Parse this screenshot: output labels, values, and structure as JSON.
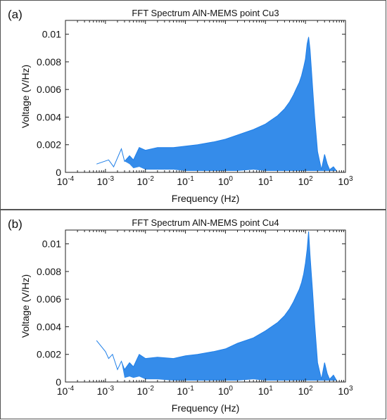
{
  "panels": [
    {
      "label": "(a)",
      "chart_data": {
        "type": "line",
        "title": "FFT Spectrum AlN-MEMS point Cu3",
        "xlabel": "Frequency (Hz)",
        "ylabel": "Voltage (V/Hz)",
        "xscale": "log",
        "xlim": [
          0.0001,
          1000
        ],
        "ylim": [
          0,
          0.011
        ],
        "x_ticks": [
          "10-4",
          "10-3",
          "10-2",
          "10-1",
          "100",
          "101",
          "102",
          "103"
        ],
        "y_ticks": [
          "0",
          "0.002",
          "0.004",
          "0.006",
          "0.008",
          "0.01"
        ],
        "y_tick_values": [
          0,
          0.002,
          0.004,
          0.006,
          0.008,
          0.01
        ],
        "grid": false,
        "color": "#1f7fe8",
        "series": [
          {
            "x": [
              0.0006,
              0.0012,
              0.0016,
              0.0025,
              0.003,
              0.004,
              0.005,
              0.007,
              0.01,
              0.02,
              0.05,
              0.1,
              0.2,
              0.5,
              1,
              2,
              5,
              10,
              20,
              30,
              40,
              50,
              60,
              70,
              80,
              90,
              100,
              110,
              120,
              130,
              140,
              150,
              170,
              200,
              250,
              300,
              350,
              400,
              500,
              600
            ],
            "y_upper": [
              0.0006,
              0.0009,
              0.0004,
              0.0017,
              0.0008,
              0.0012,
              0.0009,
              0.0018,
              0.0016,
              0.0018,
              0.0018,
              0.0019,
              0.002,
              0.0022,
              0.0024,
              0.0027,
              0.0031,
              0.0035,
              0.0041,
              0.0046,
              0.0051,
              0.0056,
              0.0061,
              0.0065,
              0.007,
              0.0076,
              0.0082,
              0.0093,
              0.0098,
              0.0089,
              0.0075,
              0.0062,
              0.004,
              0.0015,
              0.0002,
              0.0013,
              0.0006,
              0.0002,
              0.0004,
              0.0001
            ],
            "y_lower": [
              0.0006,
              0.0009,
              0.0004,
              0.0017,
              0.0008,
              0.0006,
              0.0003,
              0.0004,
              0.0002,
              0.0002,
              0.0002,
              0.0001,
              0.0001,
              0.0001,
              0.0001,
              0.0001,
              0.0002,
              0.0001,
              0.0001,
              0.0001,
              0.0001,
              0.0001,
              0.0001,
              0.0001,
              0.0001,
              0.0001,
              0.0001,
              0.0001,
              0.0001,
              0.0001,
              0.0001,
              0.0001,
              0.0001,
              0.0001,
              0.0001,
              0.0001,
              0.0001,
              0.0001,
              0.0001,
              0.0001
            ]
          }
        ]
      }
    },
    {
      "label": "(b)",
      "chart_data": {
        "type": "line",
        "title": "FFT Spectrum AlN-MEMS point Cu4",
        "xlabel": "Frequency (Hz)",
        "ylabel": "Voltage (V/Hz)",
        "xscale": "log",
        "xlim": [
          0.0001,
          1000
        ],
        "ylim": [
          0,
          0.011
        ],
        "x_ticks": [
          "10-4",
          "10-3",
          "10-2",
          "10-1",
          "100",
          "101",
          "102",
          "103"
        ],
        "y_ticks": [
          "0",
          "0.002",
          "0.004",
          "0.006",
          "0.008",
          "0.01"
        ],
        "y_tick_values": [
          0,
          0.002,
          0.004,
          0.006,
          0.008,
          0.01
        ],
        "grid": false,
        "color": "#1f7fe8",
        "series": [
          {
            "x": [
              0.0006,
              0.001,
              0.0012,
              0.0015,
              0.002,
              0.0025,
              0.003,
              0.004,
              0.005,
              0.007,
              0.01,
              0.02,
              0.05,
              0.1,
              0.2,
              0.5,
              1,
              2,
              5,
              10,
              20,
              30,
              40,
              50,
              60,
              70,
              80,
              90,
              100,
              110,
              120,
              130,
              140,
              150,
              170,
              200,
              250,
              300,
              350,
              400,
              500,
              600
            ],
            "y_upper": [
              0.003,
              0.0022,
              0.0017,
              0.002,
              0.0009,
              0.0015,
              0.0009,
              0.0014,
              0.0011,
              0.002,
              0.0017,
              0.0018,
              0.0017,
              0.0019,
              0.002,
              0.0022,
              0.0024,
              0.0028,
              0.0032,
              0.0037,
              0.0043,
              0.0048,
              0.0053,
              0.0058,
              0.0063,
              0.0067,
              0.0072,
              0.0078,
              0.0086,
              0.0096,
              0.0109,
              0.0092,
              0.0078,
              0.0066,
              0.0042,
              0.0014,
              0.0002,
              0.0014,
              0.0006,
              0.0002,
              0.0005,
              0.0001
            ],
            "y_lower": [
              0.003,
              0.0022,
              0.0017,
              0.002,
              0.0009,
              0.0015,
              0.0003,
              0.0004,
              0.0003,
              0.0004,
              0.0002,
              0.0002,
              0.0001,
              0.0001,
              0.0001,
              0.0001,
              0.0001,
              0.0001,
              0.0002,
              0.0001,
              0.0001,
              0.0001,
              0.0001,
              0.0001,
              0.0001,
              0.0001,
              0.0001,
              0.0001,
              0.0001,
              0.0001,
              0.0001,
              0.0001,
              0.0001,
              0.0001,
              0.0001,
              0.0001,
              0.0001,
              0.0001,
              0.0001,
              0.0001,
              0.0001,
              0.0001
            ]
          }
        ]
      }
    }
  ]
}
